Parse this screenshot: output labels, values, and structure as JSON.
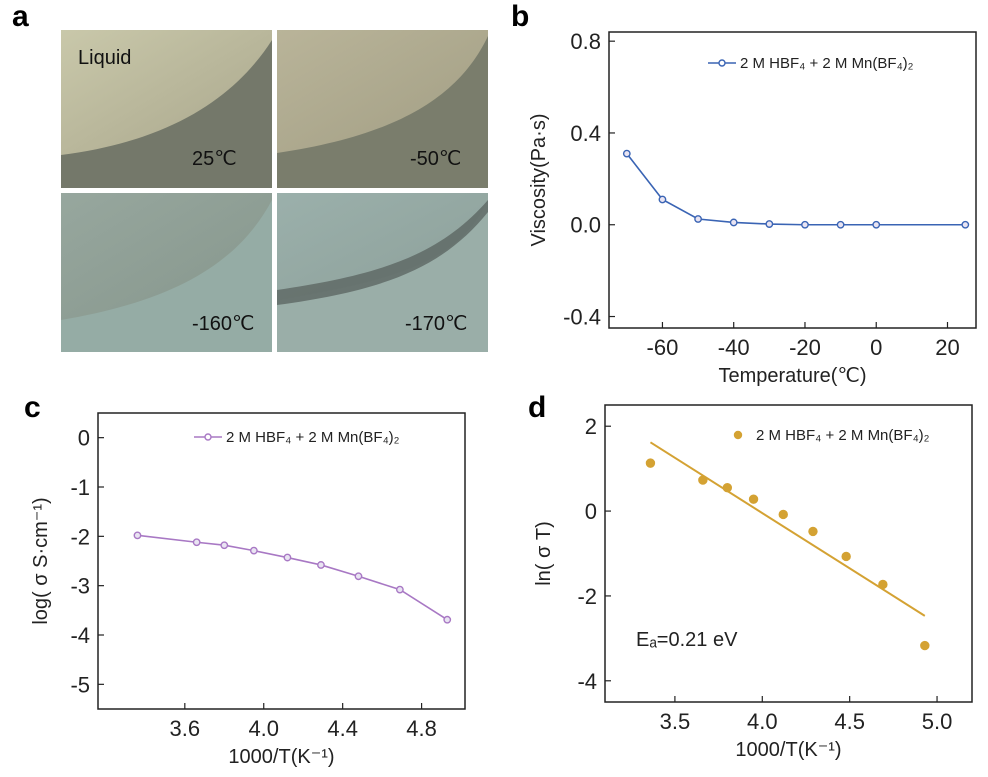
{
  "panel_labels": [
    "a",
    "b",
    "c",
    "d"
  ],
  "photos": {
    "tiles": [
      {
        "temperature": "25℃",
        "state": "Liquid",
        "colors": [
          "#c7c6a8",
          "#74786a"
        ]
      },
      {
        "temperature": "-50℃",
        "state": "",
        "colors": [
          "#b5b095",
          "#7a7d6c"
        ]
      },
      {
        "temperature": "-160℃",
        "state": "",
        "colors": [
          "#8e9e95",
          "#95aca5"
        ]
      },
      {
        "temperature": "-170℃",
        "state": "",
        "colors": [
          "#93a8a3",
          "#9aaea8"
        ]
      }
    ]
  },
  "chart_data": [
    {
      "panel": "b",
      "type": "line",
      "xlabel": "Temperature(℃)",
      "ylabel": "Viscosity(Pa·s)",
      "xlim": [
        -75,
        28
      ],
      "ylim": [
        -0.45,
        0.84
      ],
      "xticks": [
        -60,
        -40,
        -20,
        0,
        20
      ],
      "xtick_labels": [
        "-60",
        "-40",
        "-20",
        "0",
        "20"
      ],
      "yticks": [
        -0.4,
        0.0,
        0.4,
        0.8
      ],
      "ytick_labels": [
        "-0.4",
        "0.0",
        "0.4",
        "0.8"
      ],
      "color": "#3a64b4",
      "legend_position": "top-right",
      "series": [
        {
          "name": "2 M HBF₄ + 2 M Mn(BF₄)₂",
          "x": [
            -70,
            -60,
            -50,
            -40,
            -30,
            -20,
            -10,
            0,
            25
          ],
          "y": [
            0.31,
            0.11,
            0.025,
            0.01,
            0.003,
            0.0,
            0.0,
            0.0,
            0.0
          ]
        }
      ]
    },
    {
      "panel": "c",
      "type": "line",
      "xlabel": "1000/T(K⁻¹)",
      "ylabel": "log( σ S·cm⁻¹)",
      "xlim": [
        3.16,
        5.02
      ],
      "ylim": [
        -5.5,
        0.5
      ],
      "xticks": [
        3.6,
        4.0,
        4.4,
        4.8
      ],
      "xtick_labels": [
        "3.6",
        "4.0",
        "4.4",
        "4.8"
      ],
      "yticks": [
        0,
        -1,
        -2,
        -3,
        -4,
        -5
      ],
      "ytick_labels": [
        "0",
        "-1",
        "-2",
        "-3",
        "-4",
        "-5"
      ],
      "color": "#a878c4",
      "legend_position": "top-right",
      "series": [
        {
          "name": "2 M HBF₄ + 2 M Mn(BF₄)₂",
          "x": [
            3.36,
            3.66,
            3.8,
            3.95,
            4.12,
            4.29,
            4.48,
            4.69,
            4.93
          ],
          "y": [
            -1.98,
            -2.12,
            -2.18,
            -2.29,
            -2.43,
            -2.58,
            -2.81,
            -3.08,
            -3.69
          ]
        }
      ]
    },
    {
      "panel": "d",
      "type": "scatter",
      "xlabel": "1000/T(K⁻¹)",
      "ylabel": "ln( σ T)",
      "xlim": [
        3.1,
        5.2
      ],
      "ylim": [
        -4.5,
        2.5
      ],
      "xticks": [
        3.5,
        4.0,
        4.5,
        5.0
      ],
      "xtick_labels": [
        "3.5",
        "4.0",
        "4.5",
        "5.0"
      ],
      "yticks": [
        2,
        0,
        -2,
        -4
      ],
      "ytick_labels": [
        "2",
        "0",
        "-2",
        "-4"
      ],
      "color": "#d4a233",
      "legend_position": "top-right",
      "annotation": "Eₐ=0.21 eV",
      "series": [
        {
          "name": "2 M HBF₄ + 2 M Mn(BF₄)₂",
          "x": [
            3.36,
            3.66,
            3.8,
            3.95,
            4.12,
            4.29,
            4.48,
            4.69,
            4.93
          ],
          "y": [
            1.13,
            0.73,
            0.55,
            0.28,
            -0.08,
            -0.48,
            -1.07,
            -1.73,
            -3.17
          ]
        }
      ],
      "fit_line": {
        "x": [
          3.36,
          4.93
        ],
        "y": [
          1.62,
          -2.47
        ]
      }
    }
  ]
}
